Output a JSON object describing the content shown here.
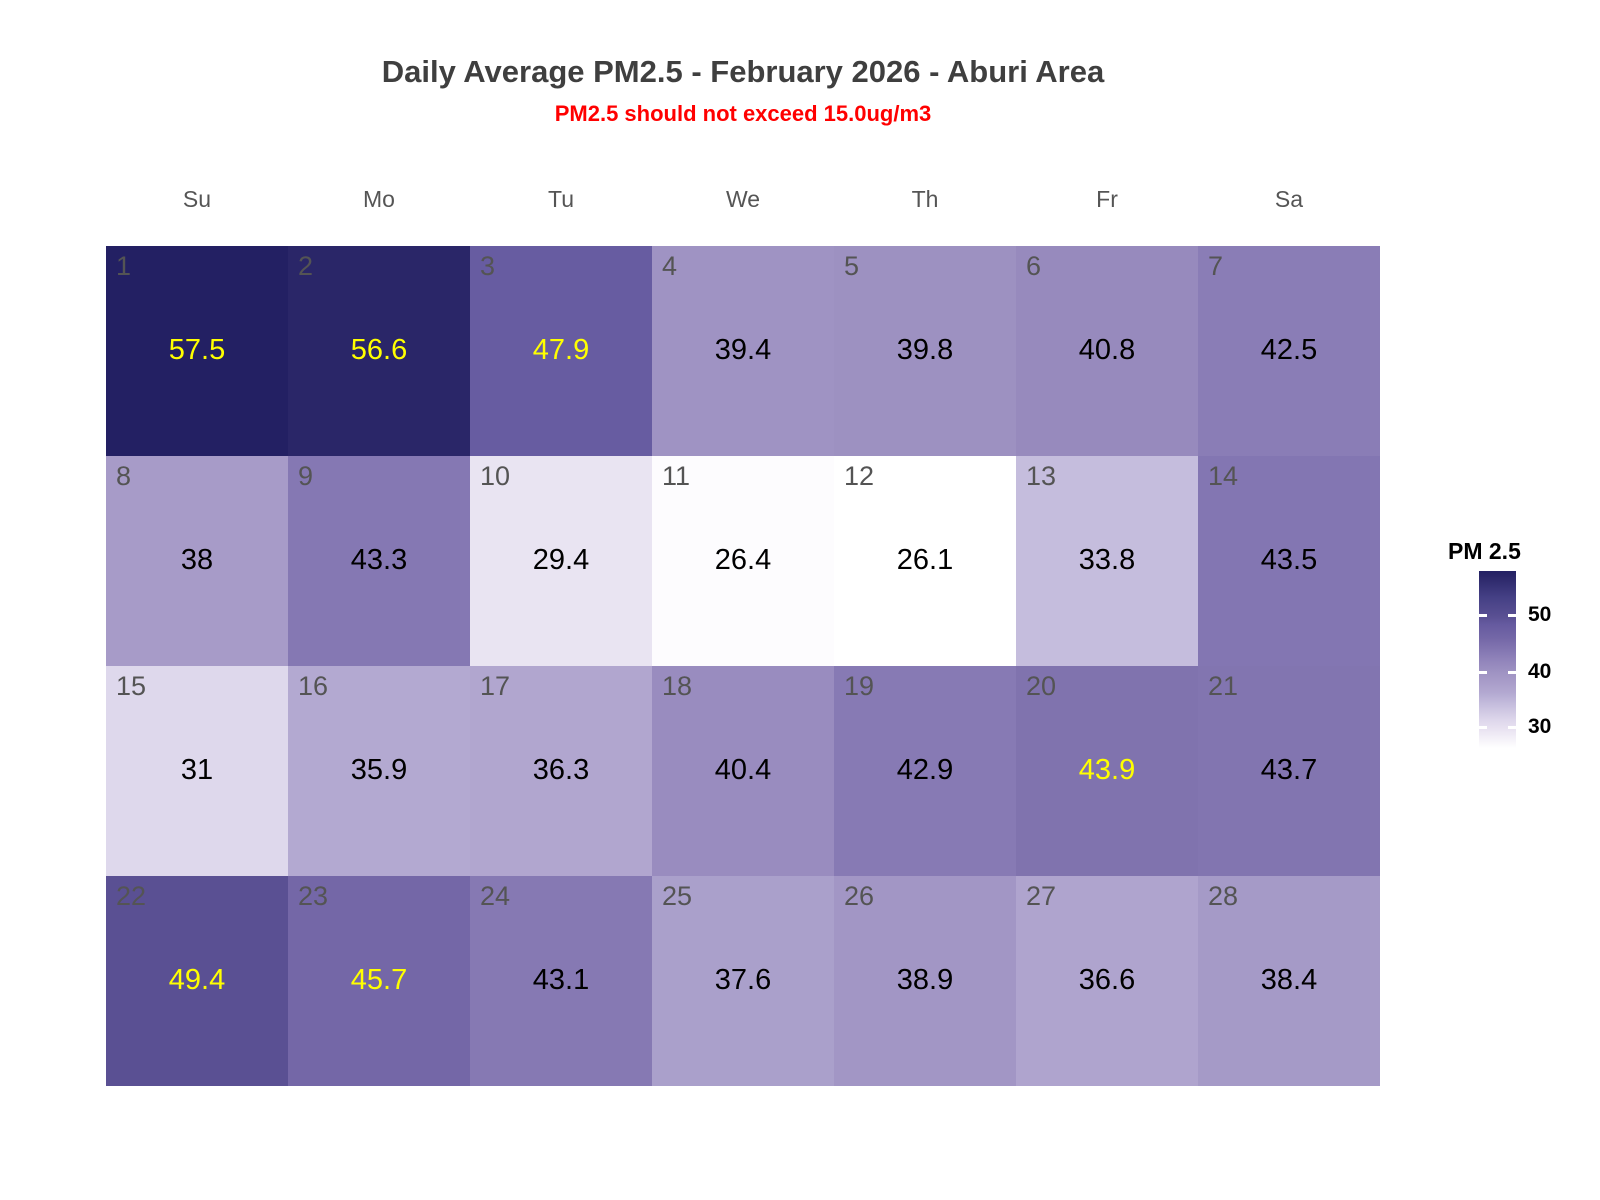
{
  "title": "Daily Average PM2.5 - February 2026 - Aburi Area",
  "subtitle": "PM2.5 should not exceed 15.0ug/m3",
  "subtitle_color": "#ff0000",
  "weekday_headers": [
    "Su",
    "Mo",
    "Tu",
    "We",
    "Th",
    "Fr",
    "Sa"
  ],
  "legend": {
    "title": "PM 2.5",
    "ticks": [
      "50",
      "40",
      "30"
    ]
  },
  "colors": {
    "highlight_value_text": "#ffff00",
    "normal_value_text": "#000000",
    "day_number_text": "#545454",
    "title_text": "#3f3f3f",
    "low_fill": "#ffffff",
    "high_fill": "#232063"
  },
  "chart_data": {
    "type": "heatmap",
    "title": "Daily Average PM2.5 - February 2026 - Aburi Area",
    "subtitle": "PM2.5 should not exceed 15.0ug/m3",
    "x_categories": [
      "Su",
      "Mo",
      "Tu",
      "We",
      "Th",
      "Fr",
      "Sa"
    ],
    "n_week_rows": 4,
    "legend_title": "PM 2.5",
    "colorbar_ticks": [
      50,
      40,
      30
    ],
    "value_range": [
      26.1,
      57.5
    ],
    "legend_position": "right",
    "days": [
      {
        "day": 1,
        "value": 57.5,
        "label": "57.5",
        "fill": "#232063",
        "text": "#ffff00"
      },
      {
        "day": 2,
        "value": 56.6,
        "label": "56.6",
        "fill": "#2a2668",
        "text": "#ffff00"
      },
      {
        "day": 3,
        "value": 47.9,
        "label": "47.9",
        "fill": "#675ca1",
        "text": "#ffff00"
      },
      {
        "day": 4,
        "value": 39.4,
        "label": "39.4",
        "fill": "#9f93c3",
        "text": "#000000"
      },
      {
        "day": 5,
        "value": 39.8,
        "label": "39.8",
        "fill": "#9d91c1",
        "text": "#000000"
      },
      {
        "day": 6,
        "value": 40.8,
        "label": "40.8",
        "fill": "#978abd",
        "text": "#000000"
      },
      {
        "day": 7,
        "value": 42.5,
        "label": "42.5",
        "fill": "#8a7db6",
        "text": "#000000"
      },
      {
        "day": 8,
        "value": 38,
        "label": "38",
        "fill": "#a79bc8",
        "text": "#000000"
      },
      {
        "day": 9,
        "value": 43.3,
        "label": "43.3",
        "fill": "#8578b3",
        "text": "#000000"
      },
      {
        "day": 10,
        "value": 29.4,
        "label": "29.4",
        "fill": "#e9e4f2",
        "text": "#000000"
      },
      {
        "day": 11,
        "value": 26.4,
        "label": "26.4",
        "fill": "#fdfcfe",
        "text": "#000000"
      },
      {
        "day": 12,
        "value": 26.1,
        "label": "26.1",
        "fill": "#ffffff",
        "text": "#000000"
      },
      {
        "day": 13,
        "value": 33.8,
        "label": "33.8",
        "fill": "#c5bddd",
        "text": "#000000"
      },
      {
        "day": 14,
        "value": 43.5,
        "label": "43.5",
        "fill": "#8376b2",
        "text": "#000000"
      },
      {
        "day": 15,
        "value": 31,
        "label": "31",
        "fill": "#ded8ec",
        "text": "#000000"
      },
      {
        "day": 16,
        "value": 35.9,
        "label": "35.9",
        "fill": "#b3a9d1",
        "text": "#000000"
      },
      {
        "day": 17,
        "value": 36.3,
        "label": "36.3",
        "fill": "#b1a6cf",
        "text": "#000000"
      },
      {
        "day": 18,
        "value": 40.4,
        "label": "40.4",
        "fill": "#998cbf",
        "text": "#000000"
      },
      {
        "day": 19,
        "value": 42.9,
        "label": "42.9",
        "fill": "#877ab4",
        "text": "#000000"
      },
      {
        "day": 20,
        "value": 43.9,
        "label": "43.9",
        "fill": "#8073ae",
        "text": "#ffff00"
      },
      {
        "day": 21,
        "value": 43.7,
        "label": "43.7",
        "fill": "#8275b0",
        "text": "#000000"
      },
      {
        "day": 22,
        "value": 49.4,
        "label": "49.4",
        "fill": "#5a5093",
        "text": "#ffff00"
      },
      {
        "day": 23,
        "value": 45.7,
        "label": "45.7",
        "fill": "#7467a7",
        "text": "#ffff00"
      },
      {
        "day": 24,
        "value": 43.1,
        "label": "43.1",
        "fill": "#8679b3",
        "text": "#000000"
      },
      {
        "day": 25,
        "value": 37.6,
        "label": "37.6",
        "fill": "#aaa0cb",
        "text": "#000000"
      },
      {
        "day": 26,
        "value": 38.9,
        "label": "38.9",
        "fill": "#a296c5",
        "text": "#000000"
      },
      {
        "day": 27,
        "value": 36.6,
        "label": "36.6",
        "fill": "#afa4ce",
        "text": "#000000"
      },
      {
        "day": 28,
        "value": 38.4,
        "label": "38.4",
        "fill": "#a59ac7",
        "text": "#000000"
      }
    ]
  }
}
